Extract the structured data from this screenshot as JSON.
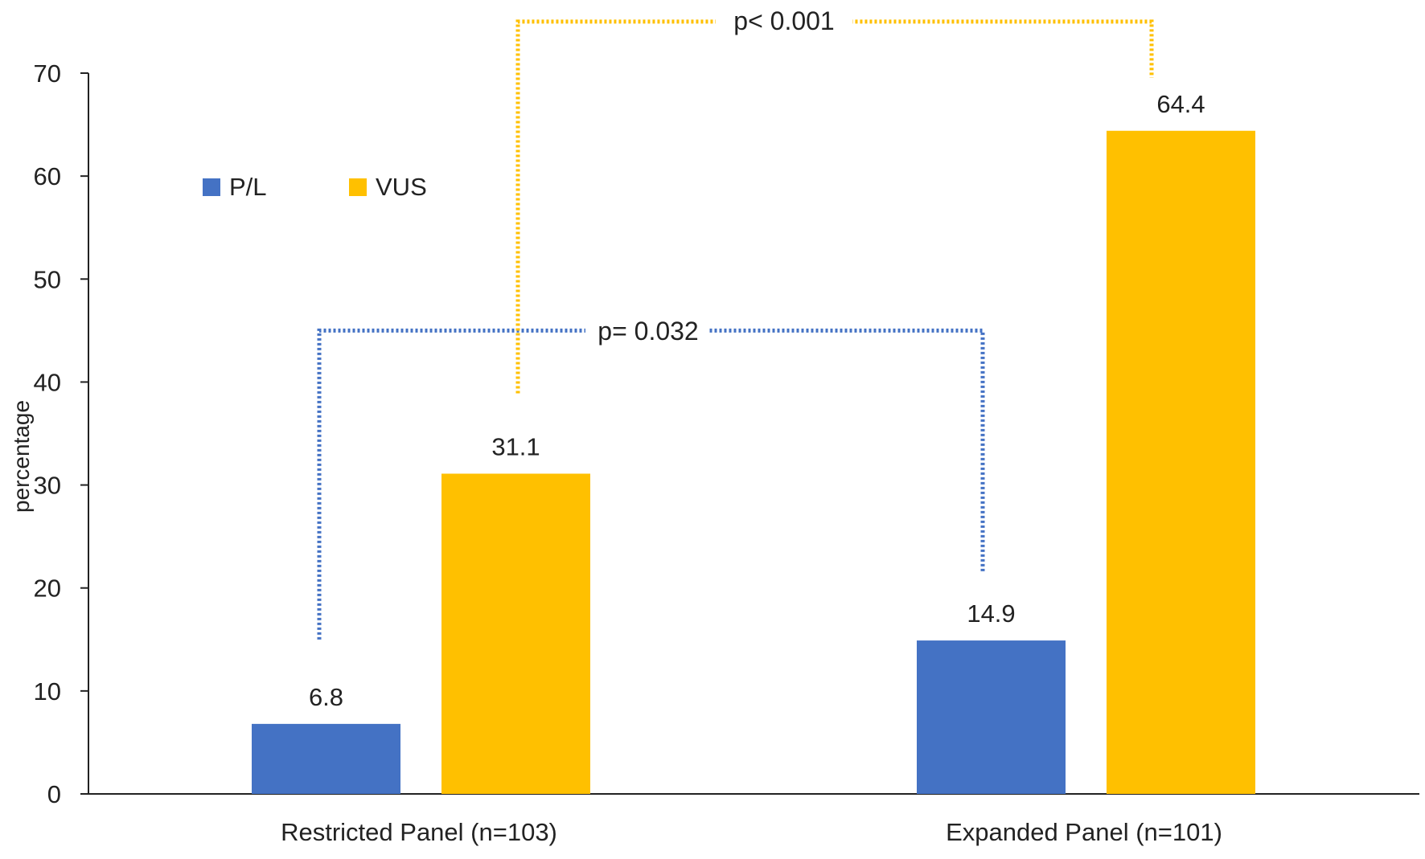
{
  "chart_data": {
    "type": "bar",
    "title": "",
    "xlabel": "",
    "ylabel": "percentage",
    "ylim": [
      0,
      70
    ],
    "yticks": [
      0,
      10,
      20,
      30,
      40,
      50,
      60,
      70
    ],
    "grid": false,
    "legend_position": "top-left",
    "categories": [
      "Restricted Panel (n=103)",
      "Expanded Panel (n=101)"
    ],
    "series": [
      {
        "name": "P/L",
        "color": "#4472C4",
        "values": [
          6.8,
          14.9
        ],
        "labels": [
          "6.8",
          "14.9"
        ]
      },
      {
        "name": "VUS",
        "color": "#FFC000",
        "values": [
          31.1,
          64.4
        ],
        "labels": [
          "31.1",
          "64.4"
        ]
      }
    ],
    "annotations": [
      {
        "text": "p= 0.032",
        "series": "P/L",
        "color": "#4472C4",
        "bracket_level": 45
      },
      {
        "text": "p< 0.001",
        "series": "VUS",
        "color": "#FFC000",
        "bracket_level": 75
      }
    ]
  }
}
